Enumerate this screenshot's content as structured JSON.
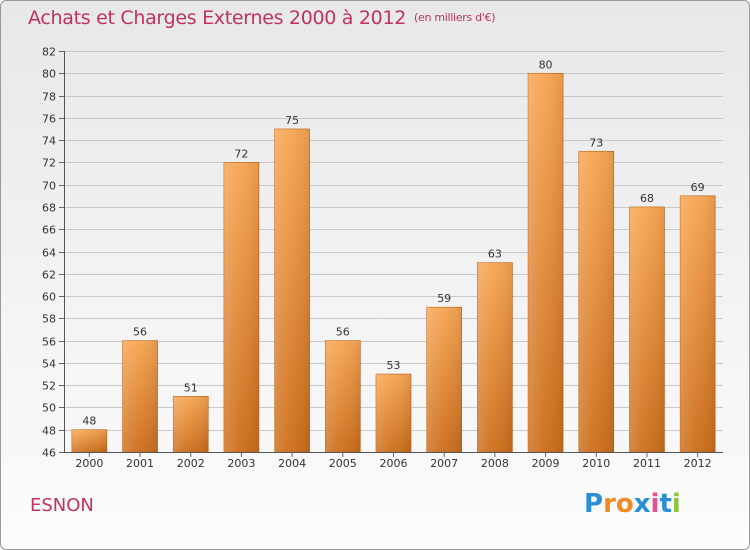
{
  "title": "Achats et Charges Externes 2000 à 2012",
  "subtitle": "(en milliers d'€)",
  "town": "ESNON",
  "logo": {
    "letters": [
      "P",
      "r",
      "o",
      "x",
      "i",
      "t",
      "i"
    ],
    "colors": [
      "#2a8fd6",
      "#f08a24",
      "#f08a24",
      "#2a8fd6",
      "#e64e9a",
      "#2a8fd6",
      "#8cc63f"
    ]
  },
  "colors": {
    "accent": "#c03262",
    "bar_top": "#f7a552",
    "bar_bottom": "#cc6d1a",
    "grid": "#c8c8c8"
  },
  "chart_data": {
    "type": "bar",
    "title": "Achats et Charges Externes 2000 à 2012",
    "subtitle": "(en milliers d'€)",
    "categories": [
      "2000",
      "2001",
      "2002",
      "2003",
      "2004",
      "2005",
      "2006",
      "2007",
      "2008",
      "2009",
      "2010",
      "2011",
      "2012"
    ],
    "values": [
      48,
      56,
      51,
      72,
      75,
      56,
      53,
      59,
      63,
      80,
      73,
      68,
      69
    ],
    "ylim": [
      46,
      82
    ],
    "yticks": [
      46,
      48,
      50,
      52,
      54,
      56,
      58,
      60,
      62,
      64,
      66,
      68,
      70,
      72,
      74,
      76,
      78,
      80,
      82
    ],
    "xlabel": "",
    "ylabel": "",
    "grid": true,
    "data_labels": true
  }
}
